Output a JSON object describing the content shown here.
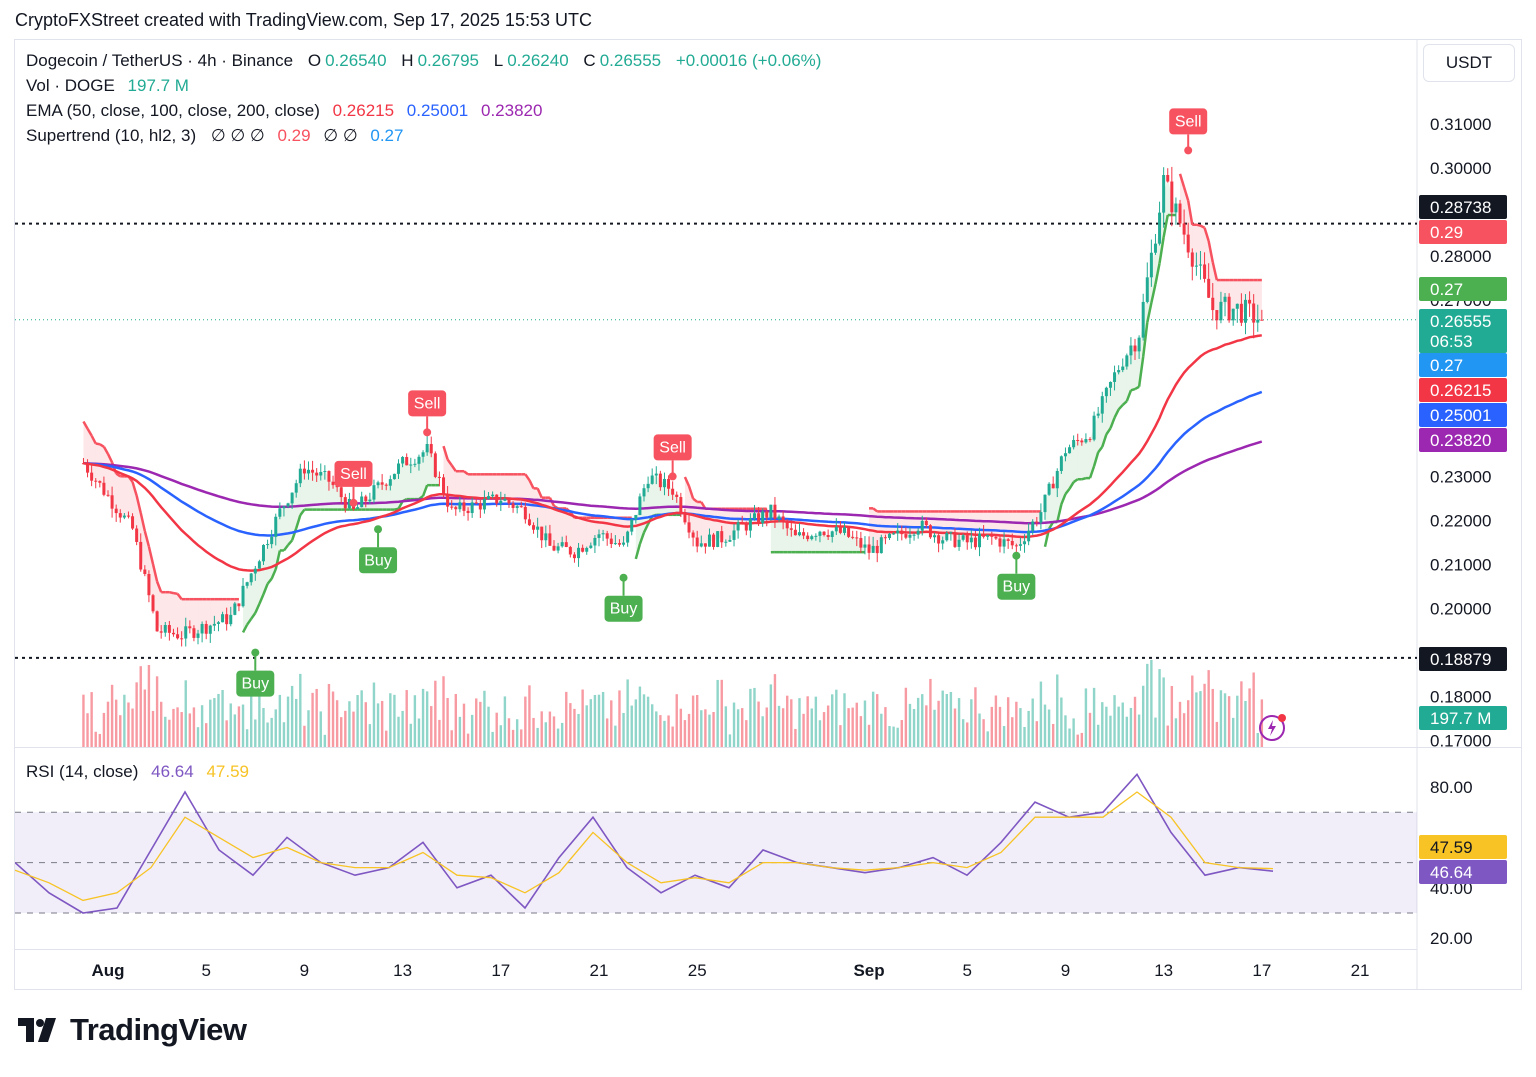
{
  "header": {
    "watermark": "CryptoFXStreet created with TradingView.com, Sep 17, 2025 15:53 UTC"
  },
  "legend": {
    "symbol": "Dogecoin / TetherUS · 4h · Binance",
    "o_label": "O",
    "o_value": "0.26540",
    "h_label": "H",
    "h_value": "0.26795",
    "l_label": "L",
    "l_value": "0.26240",
    "c_label": "C",
    "c_value": "0.26555",
    "change": "+0.00016 (+0.06%)",
    "vol_label": "Vol · DOGE",
    "vol_value": "197.7 M",
    "ema_label": "EMA (50, close, 100, close, 200, close)",
    "ema50": "0.26215",
    "ema100": "0.25001",
    "ema200": "0.23820",
    "st_label": "Supertrend (10, hl2, 3)",
    "st_sym": "∅ ∅ ∅",
    "st_up": "0.29",
    "st_sym2": "∅ ∅",
    "st_down": "0.27",
    "rsi_label": "RSI (14, close)",
    "rsi_value": "46.64",
    "rsi_ma": "47.59"
  },
  "currency_button": "USDT",
  "price_labels": {
    "key_high": "0.28738",
    "st_up": "0.29",
    "st_down_green": "0.27",
    "last": "0.26555",
    "countdown": "06:53",
    "st_down_blue": "0.27",
    "ema50": "0.26215",
    "ema100": "0.25001",
    "ema200": "0.23820",
    "key_low": "0.18879",
    "volume": "197.7 M",
    "rsi_ma": "47.59",
    "rsi": "46.64"
  },
  "colors": {
    "up": "#22ab94",
    "down": "#f23645",
    "ema50": "#f23645",
    "ema100": "#2962ff",
    "ema200": "#9c27b0",
    "st_up": "#4caf50",
    "st_down": "#f7525f",
    "rsi": "#7e57c2",
    "rsi_ma": "#f7c325"
  },
  "brand": "TradingView",
  "chart_data": [
    {
      "type": "candlestick",
      "title": "Dogecoin / TetherUS · 4h · Binance",
      "y_axis_ticks": [
        "0.31000",
        "0.30000",
        "0.28000",
        "0.27000",
        "0.23000",
        "0.22000",
        "0.21000",
        "0.20000",
        "0.18000",
        "0.17000"
      ],
      "x_axis_ticks": [
        "Aug",
        "5",
        "9",
        "13",
        "17",
        "21",
        "25",
        "Sep",
        "5",
        "9",
        "13",
        "17",
        "21"
      ],
      "ylim": [
        0.17,
        0.312
      ],
      "horizontal_levels": [
        0.28738,
        0.18879
      ],
      "last_price": 0.26555,
      "signals": [
        {
          "label": "Buy",
          "date": "Aug 7",
          "price": 0.19
        },
        {
          "label": "Sell",
          "date": "Aug 11",
          "price": 0.224
        },
        {
          "label": "Buy",
          "date": "Aug 12",
          "price": 0.218
        },
        {
          "label": "Sell",
          "date": "Aug 14",
          "price": 0.24
        },
        {
          "label": "Buy",
          "date": "Aug 22",
          "price": 0.207
        },
        {
          "label": "Sell",
          "date": "Aug 24",
          "price": 0.23
        },
        {
          "label": "Buy",
          "date": "Sep 7",
          "price": 0.212
        },
        {
          "label": "Sell",
          "date": "Sep 14",
          "price": 0.304
        }
      ],
      "close_path": [
        {
          "x": "Jul 31",
          "y": 0.233
        },
        {
          "x": "Aug 2",
          "y": 0.218
        },
        {
          "x": "Aug 3",
          "y": 0.195
        },
        {
          "x": "Aug 4",
          "y": 0.194
        },
        {
          "x": "Aug 6",
          "y": 0.198
        },
        {
          "x": "Aug 7",
          "y": 0.21
        },
        {
          "x": "Aug 8",
          "y": 0.222
        },
        {
          "x": "Aug 9",
          "y": 0.232
        },
        {
          "x": "Aug 10",
          "y": 0.229
        },
        {
          "x": "Aug 11",
          "y": 0.222
        },
        {
          "x": "Aug 13",
          "y": 0.233
        },
        {
          "x": "Aug 14",
          "y": 0.236
        },
        {
          "x": "Aug 15",
          "y": 0.222
        },
        {
          "x": "Aug 17",
          "y": 0.225
        },
        {
          "x": "Aug 18",
          "y": 0.222
        },
        {
          "x": "Aug 19",
          "y": 0.214
        },
        {
          "x": "Aug 20",
          "y": 0.213
        },
        {
          "x": "Aug 21",
          "y": 0.217
        },
        {
          "x": "Aug 22",
          "y": 0.214
        },
        {
          "x": "Aug 23",
          "y": 0.23
        },
        {
          "x": "Aug 24",
          "y": 0.227
        },
        {
          "x": "Aug 25",
          "y": 0.215
        },
        {
          "x": "Aug 26",
          "y": 0.216
        },
        {
          "x": "Aug 27",
          "y": 0.219
        },
        {
          "x": "Aug 28",
          "y": 0.222
        },
        {
          "x": "Aug 29",
          "y": 0.216
        },
        {
          "x": "Aug 30",
          "y": 0.218
        },
        {
          "x": "Aug 31",
          "y": 0.217
        },
        {
          "x": "Sep 1",
          "y": 0.213
        },
        {
          "x": "Sep 2",
          "y": 0.216
        },
        {
          "x": "Sep 3",
          "y": 0.219
        },
        {
          "x": "Sep 4",
          "y": 0.216
        },
        {
          "x": "Sep 5",
          "y": 0.215
        },
        {
          "x": "Sep 6",
          "y": 0.216
        },
        {
          "x": "Sep 7",
          "y": 0.214
        },
        {
          "x": "Sep 8",
          "y": 0.222
        },
        {
          "x": "Sep 9",
          "y": 0.236
        },
        {
          "x": "Sep 10",
          "y": 0.24
        },
        {
          "x": "Sep 11",
          "y": 0.253
        },
        {
          "x": "Sep 12",
          "y": 0.263
        },
        {
          "x": "Sep 13",
          "y": 0.297
        },
        {
          "x": "Sep 14",
          "y": 0.283
        },
        {
          "x": "Sep 15",
          "y": 0.268
        },
        {
          "x": "Sep 16",
          "y": 0.268
        },
        {
          "x": "Sep 17",
          "y": 0.2656
        }
      ],
      "volume_max_label": "197.7 M"
    },
    {
      "type": "line",
      "title": "RSI (14, close)",
      "y_axis_ticks": [
        "80.00",
        "40.00",
        "20.00"
      ],
      "ylim": [
        14,
        92
      ],
      "bands": [
        70,
        50,
        30
      ],
      "series": [
        {
          "name": "RSI",
          "values": [
            50,
            38,
            30,
            32,
            55,
            78,
            55,
            45,
            60,
            50,
            45,
            48,
            58,
            40,
            45,
            32,
            52,
            68,
            48,
            38,
            45,
            40,
            55,
            50,
            48,
            46,
            48,
            52,
            45,
            58,
            74,
            68,
            70,
            85,
            62,
            45,
            48,
            46.6
          ]
        },
        {
          "name": "MA",
          "values": [
            47,
            42,
            35,
            38,
            48,
            68,
            60,
            52,
            56,
            50,
            48,
            48,
            54,
            45,
            44,
            38,
            46,
            62,
            50,
            42,
            44,
            42,
            50,
            50,
            48,
            47,
            48,
            50,
            48,
            54,
            68,
            68,
            68,
            78,
            68,
            50,
            48,
            47.6
          ]
        }
      ],
      "last_rsi": 46.64,
      "last_ma": 47.59
    }
  ]
}
